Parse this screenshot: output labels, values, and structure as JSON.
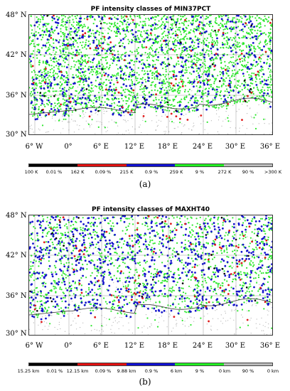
{
  "panels": [
    {
      "title": "PF intensity classes of MIN37PCT",
      "caption": "(a)",
      "lat_labels": [
        "48° N",
        "42° N",
        "36° N",
        "30° N"
      ],
      "lon_labels": [
        "6° W",
        "0°",
        "6° E",
        "12° E",
        "18° E",
        "24° E",
        "30° E",
        "36° E"
      ],
      "legend": {
        "colors": [
          "#000000",
          "#e01010",
          "#1010d0",
          "#22ee22",
          "#bbbbbb"
        ],
        "labels": [
          "100 K",
          "0.01 %",
          "162 K",
          "0.09 %",
          "215 K",
          "0.9 %",
          "259 K",
          "9 %",
          "272 K",
          "90 %",
          ">300 K"
        ]
      }
    },
    {
      "title": "PF intensity classes of MAXHT40",
      "caption": "(b)",
      "lat_labels": [
        "48° N",
        "42° N",
        "36° N",
        "30° N"
      ],
      "lon_labels": [
        "6° W",
        "0°",
        "6° E",
        "12° E",
        "18° E",
        "24° E",
        "30° E",
        "36° E"
      ],
      "legend": {
        "colors": [
          "#000000",
          "#e01010",
          "#1010d0",
          "#22ee22",
          "#bbbbbb"
        ],
        "labels": [
          "15.25 km",
          "0.01 %",
          "12.15 km",
          "0.09 %",
          "9.88 km",
          "0.9 %",
          "6 km",
          "9 %",
          "0 km",
          "90 %",
          "0 km"
        ]
      }
    }
  ]
}
